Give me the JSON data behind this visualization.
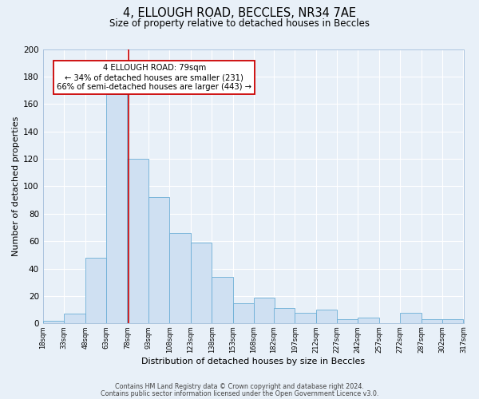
{
  "title": "4, ELLOUGH ROAD, BECCLES, NR34 7AE",
  "subtitle": "Size of property relative to detached houses in Beccles",
  "xlabel": "Distribution of detached houses by size in Beccles",
  "ylabel": "Number of detached properties",
  "bar_bins": [
    18,
    33,
    48,
    63,
    78,
    93,
    108,
    123,
    138,
    153,
    168,
    182,
    197,
    212,
    227,
    242,
    257,
    272,
    287,
    302,
    317
  ],
  "bar_values": [
    2,
    7,
    48,
    167,
    120,
    92,
    66,
    59,
    34,
    15,
    19,
    11,
    8,
    10,
    3,
    4,
    0,
    8,
    3,
    3
  ],
  "bar_color": "#cfe0f2",
  "bar_edge_color": "#6baed6",
  "vline_x": 79,
  "vline_color": "#cc0000",
  "ylim": [
    0,
    200
  ],
  "yticks": [
    0,
    20,
    40,
    60,
    80,
    100,
    120,
    140,
    160,
    180,
    200
  ],
  "annotation_line1": "4 ELLOUGH ROAD: 79sqm",
  "annotation_line2": "← 34% of detached houses are smaller (231)",
  "annotation_line3": "66% of semi-detached houses are larger (443) →",
  "annotation_box_edge_color": "#cc0000",
  "annotation_box_facecolor": "#ffffff",
  "footer_line1": "Contains HM Land Registry data © Crown copyright and database right 2024.",
  "footer_line2": "Contains public sector information licensed under the Open Government Licence v3.0.",
  "background_color": "#e8f0f8",
  "plot_bg_color": "#e8f0f8",
  "tick_labels": [
    "18sqm",
    "33sqm",
    "48sqm",
    "63sqm",
    "78sqm",
    "93sqm",
    "108sqm",
    "123sqm",
    "138sqm",
    "153sqm",
    "168sqm",
    "182sqm",
    "197sqm",
    "212sqm",
    "227sqm",
    "242sqm",
    "257sqm",
    "272sqm",
    "287sqm",
    "302sqm",
    "317sqm"
  ]
}
